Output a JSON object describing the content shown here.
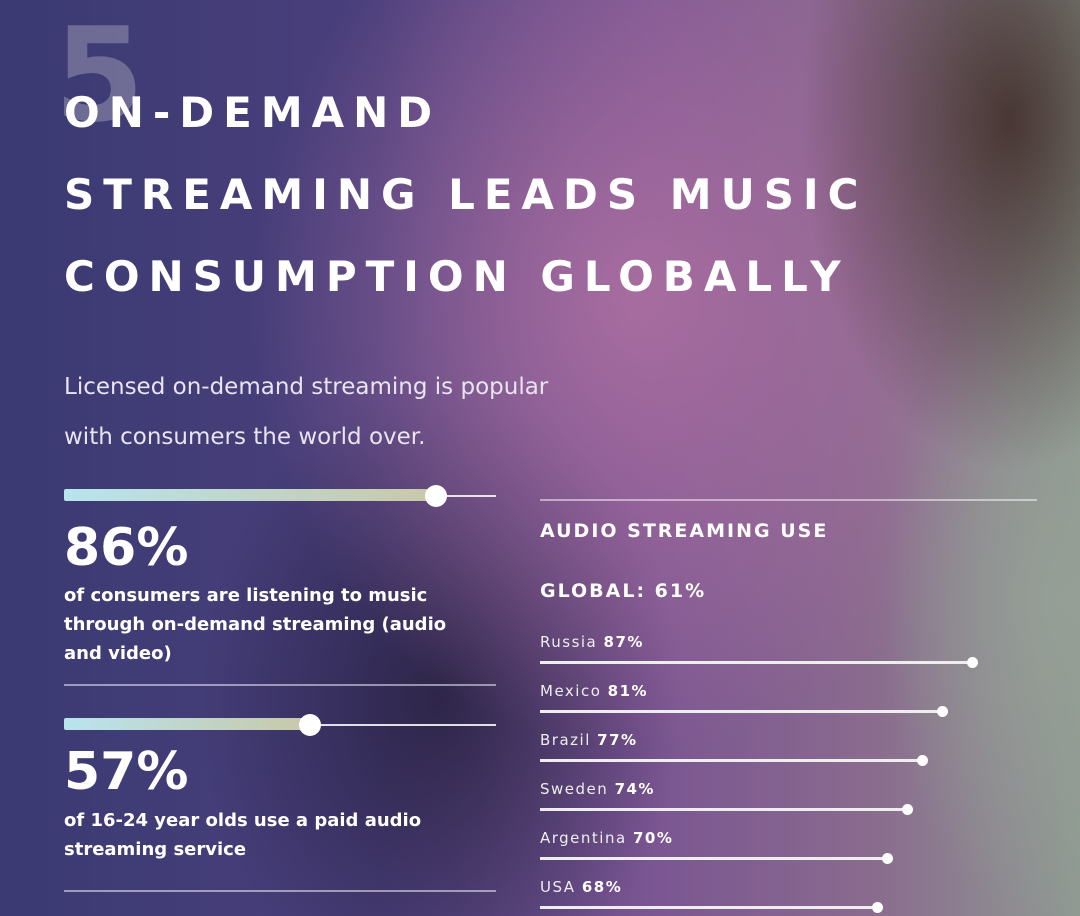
{
  "number": "5",
  "title": [
    "ON-DEMAND",
    "STREAMING LEADS MUSIC",
    "CONSUMPTION GLOBALLY"
  ],
  "subtitle": [
    "Licensed on-demand streaming is popular",
    "with consumers the world over."
  ],
  "stats": [
    {
      "value": "86%",
      "percent": 86,
      "description": "of consumers are listening to music through on-demand streaming (audio and video)"
    },
    {
      "value": "57%",
      "percent": 57,
      "description": "of 16-24 year olds use a paid audio streaming service"
    }
  ],
  "chart_data": {
    "type": "bar",
    "title": "AUDIO STREAMING USE",
    "subtitle": "GLOBAL: 61%",
    "categories": [
      "Russia",
      "Mexico",
      "Brazil",
      "Sweden",
      "Argentina",
      "USA"
    ],
    "values": [
      87,
      81,
      77,
      74,
      70,
      68
    ],
    "labels": [
      "87%",
      "81%",
      "77%",
      "74%",
      "70%",
      "68%"
    ],
    "xlim": [
      0,
      100
    ],
    "orientation": "horizontal"
  }
}
